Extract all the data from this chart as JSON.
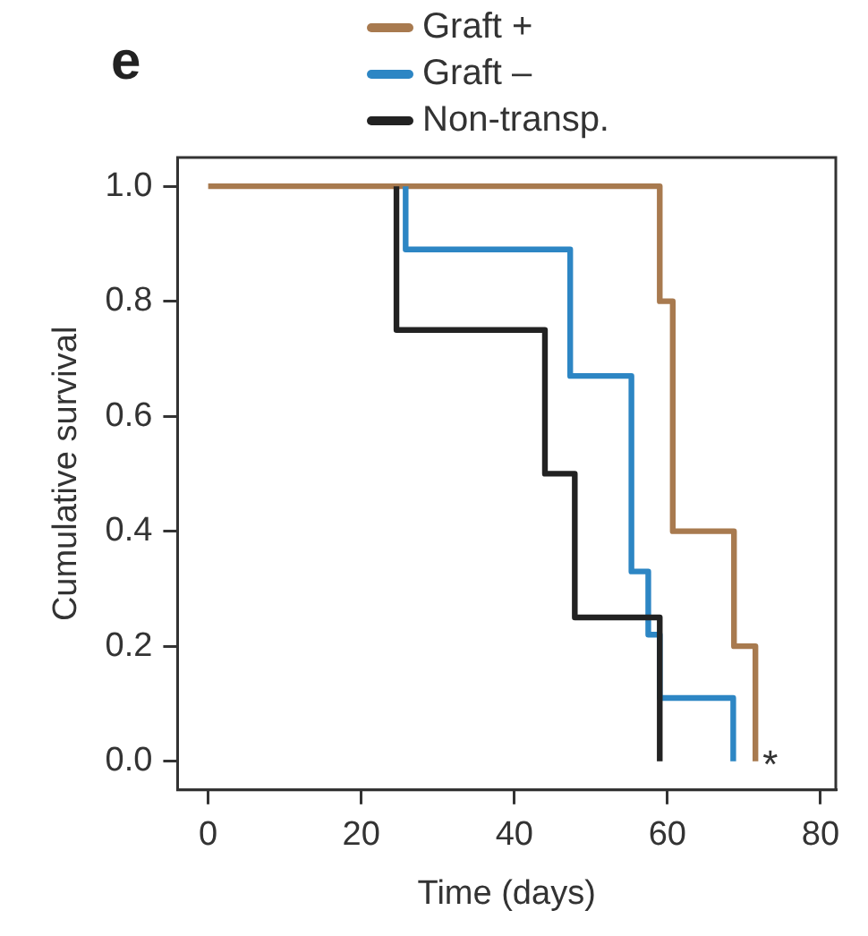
{
  "chart_data": {
    "type": "step",
    "xlabel": "Time (days)",
    "ylabel": "Cumulative survival",
    "annotations": [
      "e",
      "*"
    ],
    "series": [
      {
        "name": "Graft +",
        "color": "#a87a4f",
        "x": [
          0,
          59,
          60.7,
          68.7,
          71.5
        ],
        "values": [
          1,
          0.8,
          0.4,
          0.2,
          0
        ]
      },
      {
        "name": "Graft –",
        "color": "#2d86c4",
        "x": [
          25.8,
          25.8,
          47.3,
          55.3,
          57.5,
          59,
          68.6
        ],
        "values": [
          1,
          0.89,
          0.67,
          0.33,
          0.22,
          0.11,
          0
        ]
      },
      {
        "name": "Non-transp.",
        "color": "#222222",
        "x": [
          24.6,
          24.6,
          44,
          47.9,
          59
        ],
        "values": [
          1,
          0.75,
          0.5,
          0.25,
          0
        ]
      }
    ],
    "xlim": [
      -4,
      82
    ],
    "ylim": [
      -0.05,
      1.05
    ],
    "xticks": [
      0,
      20,
      40,
      60,
      80
    ],
    "yticks": [
      {
        "value": 0,
        "label": "0.0"
      },
      {
        "value": 0.2,
        "label": "0.2"
      },
      {
        "value": 0.4,
        "label": "0.4"
      },
      {
        "value": 0.6,
        "label": "0.6"
      },
      {
        "value": 0.8,
        "label": "0.8"
      },
      {
        "value": 1,
        "label": "1.0"
      }
    ],
    "grid": false,
    "legend": "top",
    "marker": "none",
    "line_style": "solid"
  }
}
